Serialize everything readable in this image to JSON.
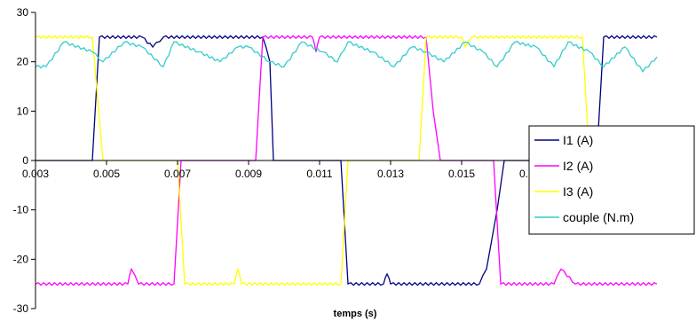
{
  "chart_data": {
    "type": "line",
    "title": "",
    "xlabel": "temps (s)",
    "ylabel": "",
    "xlim": [
      0.003,
      0.0205
    ],
    "ylim": [
      -30,
      30
    ],
    "x_ticks": [
      "0.003",
      "0.005",
      "0.007",
      "0.009",
      "0.011",
      "0.013",
      "0.015",
      "0.017"
    ],
    "y_ticks": [
      "30",
      "20",
      "10",
      "0",
      "-10",
      "-20",
      "-30"
    ],
    "grid": false,
    "legend_position": "right",
    "series": [
      {
        "name": "I1 (A)",
        "color": "#000080",
        "x": [
          0.003,
          0.0046,
          0.0048,
          0.006,
          0.0063,
          0.0066,
          0.0094,
          0.0096,
          0.0097,
          0.0116,
          0.0118,
          0.0128,
          0.0129,
          0.013,
          0.0155,
          0.0157,
          0.016,
          0.0162,
          0.0164,
          0.0188,
          0.019,
          0.0205
        ],
        "y": [
          0,
          0,
          25,
          25,
          23,
          25,
          25,
          20,
          0,
          0,
          -25,
          -25,
          -23,
          -25,
          -25,
          -22,
          -10,
          0,
          0,
          0,
          25,
          25
        ]
      },
      {
        "name": "I2 (A)",
        "color": "#FF00FF",
        "x": [
          0.003,
          0.0056,
          0.0057,
          0.0059,
          0.0069,
          0.0071,
          0.0092,
          0.0094,
          0.0108,
          0.0109,
          0.011,
          0.014,
          0.0142,
          0.0144,
          0.0159,
          0.0161,
          0.0176,
          0.0178,
          0.0182,
          0.0205
        ],
        "y": [
          -25,
          -25,
          -22,
          -25,
          -25,
          0,
          0,
          25,
          25,
          22,
          25,
          25,
          10,
          0,
          0,
          -25,
          -25,
          -22,
          -25,
          -25
        ]
      },
      {
        "name": "I3 (A)",
        "color": "#FFFF00",
        "x": [
          0.003,
          0.0046,
          0.0049,
          0.007,
          0.0072,
          0.0086,
          0.0087,
          0.0088,
          0.0116,
          0.0118,
          0.0138,
          0.014,
          0.015,
          0.0151,
          0.0153,
          0.0184,
          0.0186,
          0.0205
        ],
        "y": [
          25,
          25,
          0,
          0,
          -25,
          -25,
          -22,
          -25,
          -25,
          0,
          0,
          25,
          25,
          23,
          25,
          25,
          0,
          0
        ]
      },
      {
        "name": "couple (N.m)",
        "color": "#33CCCC",
        "x": [
          0.003,
          0.0033,
          0.0038,
          0.0046,
          0.0049,
          0.0055,
          0.006,
          0.0066,
          0.0069,
          0.0076,
          0.0082,
          0.0087,
          0.009,
          0.0096,
          0.01,
          0.0105,
          0.0111,
          0.0115,
          0.0118,
          0.0125,
          0.0131,
          0.0136,
          0.014,
          0.0145,
          0.0151,
          0.0156,
          0.016,
          0.0165,
          0.0171,
          0.0176,
          0.018,
          0.0186,
          0.019,
          0.0196,
          0.0201,
          0.0205
        ],
        "y": [
          19,
          19,
          24,
          22,
          20,
          24,
          23,
          19,
          24,
          22,
          20,
          23,
          23,
          20,
          19,
          24,
          22,
          20,
          24,
          22,
          19,
          23,
          22,
          20,
          24,
          22,
          19,
          24,
          23,
          19,
          24,
          22,
          19,
          23,
          18,
          21
        ]
      }
    ]
  }
}
